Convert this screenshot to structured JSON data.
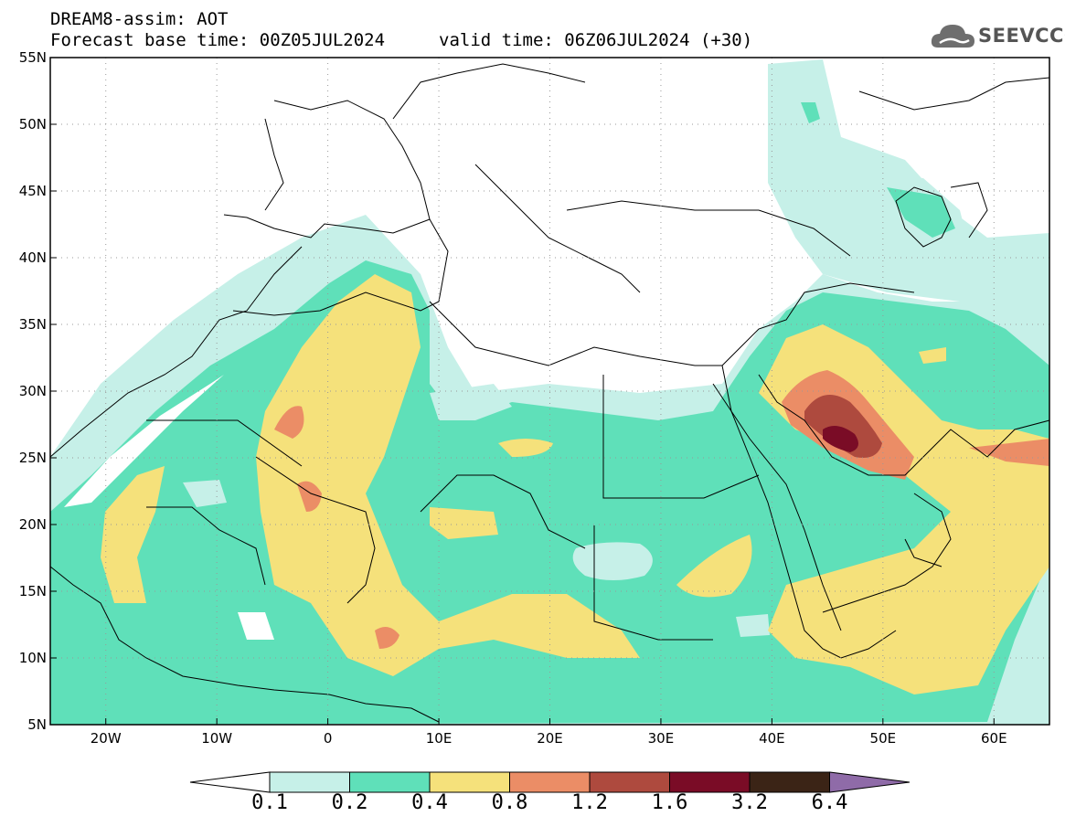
{
  "header": {
    "title_line1": "DREAM8-assim: AOT",
    "title_line2": "Forecast base time: 00Z05JUL2024",
    "valid_time": "valid time: 06Z06JUL2024 (+30)"
  },
  "logo": {
    "text": "SEEVCCC",
    "icon": "cloud-icon"
  },
  "axes": {
    "lon_labels": [
      "20W",
      "10W",
      "0",
      "10E",
      "20E",
      "30E",
      "40E",
      "50E",
      "60E"
    ],
    "lat_labels": [
      "55N",
      "50N",
      "45N",
      "40N",
      "35N",
      "30N",
      "25N",
      "20N",
      "15N",
      "10N",
      "5N"
    ],
    "lon_range": [
      -25,
      65
    ],
    "lat_range": [
      5,
      55
    ]
  },
  "colorbar": {
    "levels": [
      "0.1",
      "0.2",
      "0.4",
      "0.8",
      "1.2",
      "1.6",
      "3.2",
      "6.4"
    ],
    "colors": [
      "#c6f0e8",
      "#5fe0b9",
      "#f5e17b",
      "#eb8d66",
      "#ae4a3e",
      "#7a0c26",
      "#3b2416",
      "#8f6ba8"
    ]
  },
  "field_colors": {
    "lt01": "#ffffff",
    "c1": "#c6f0e8",
    "c2": "#5fe0b9",
    "c3": "#f5e17b",
    "c4": "#eb8d66",
    "c5": "#ae4a3e",
    "c6": "#7a0c26"
  }
}
